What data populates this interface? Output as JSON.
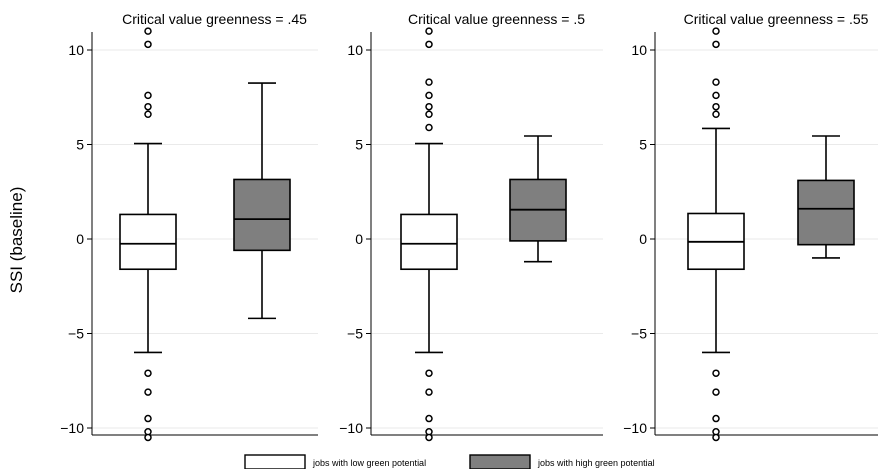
{
  "chart_data": {
    "type": "box",
    "ylabel": "SSI (baseline)",
    "yticks": [
      -10,
      -5,
      0,
      5,
      10
    ],
    "ylim": [
      -10.6,
      11.2
    ],
    "grid": true,
    "legend_position": "bottom",
    "legend": [
      {
        "label": "jobs with low green potential",
        "color": "#ffffff"
      },
      {
        "label": "jobs with high green potential",
        "color": "#7f7f7f"
      }
    ],
    "panels": [
      {
        "title": "Critical value greenness = .45",
        "boxes": [
          {
            "group": "low",
            "whisker_low": -6.0,
            "q1": -1.6,
            "median": -0.25,
            "q3": 1.3,
            "whisker_high": 5.05,
            "outliers": [
              11.0,
              10.3,
              7.6,
              7.0,
              6.6,
              -7.1,
              -8.1,
              -9.5,
              -10.2,
              -10.5
            ]
          },
          {
            "group": "high",
            "whisker_low": -4.2,
            "q1": -0.6,
            "median": 1.05,
            "q3": 3.15,
            "whisker_high": 8.25,
            "outliers": []
          }
        ]
      },
      {
        "title": "Critical value greenness = .5",
        "boxes": [
          {
            "group": "low",
            "whisker_low": -6.0,
            "q1": -1.6,
            "median": -0.25,
            "q3": 1.3,
            "whisker_high": 5.05,
            "outliers": [
              11.0,
              10.3,
              8.3,
              7.6,
              7.0,
              6.6,
              5.9,
              -7.1,
              -8.1,
              -9.5,
              -10.2,
              -10.5
            ]
          },
          {
            "group": "high",
            "whisker_low": -1.2,
            "q1": -0.1,
            "median": 1.55,
            "q3": 3.15,
            "whisker_high": 5.45,
            "outliers": []
          }
        ]
      },
      {
        "title": "Critical value greenness = .55",
        "boxes": [
          {
            "group": "low",
            "whisker_low": -6.0,
            "q1": -1.6,
            "median": -0.15,
            "q3": 1.35,
            "whisker_high": 5.85,
            "outliers": [
              11.0,
              10.3,
              8.3,
              7.6,
              7.0,
              6.6,
              -7.1,
              -8.1,
              -9.5,
              -10.2,
              -10.5
            ]
          },
          {
            "group": "high",
            "whisker_low": -1.0,
            "q1": -0.3,
            "median": 1.6,
            "q3": 3.1,
            "whisker_high": 5.45,
            "outliers": []
          }
        ]
      }
    ]
  }
}
